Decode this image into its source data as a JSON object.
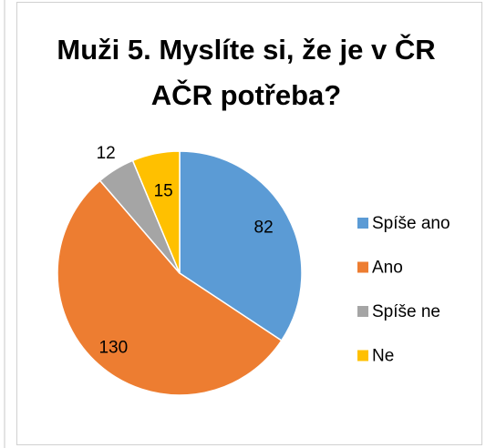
{
  "chart_data": {
    "type": "pie",
    "title": "Muži 5. Myslíte si, že je v ČR AČR potřeba?",
    "categories": [
      "Spíše ano",
      "Ano",
      "Spíše ne",
      "Ne"
    ],
    "values": [
      82,
      130,
      12,
      15
    ],
    "colors": [
      "#5b9bd5",
      "#ed7d31",
      "#a5a5a5",
      "#ffc000"
    ],
    "legend": "right"
  }
}
